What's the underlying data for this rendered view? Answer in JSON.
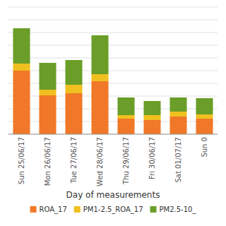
{
  "chart_data": {
    "type": "bar",
    "stacked": true,
    "categories": [
      "Sun 25/06/17",
      "Mon 26/06/17",
      "Tue 27/06/17",
      "Wed 28/06/17",
      "Thu 29/06/17",
      "Fri 30/06/17",
      "Sat 01/07/17",
      "Sun 0"
    ],
    "series": [
      {
        "name": "ROA_17",
        "color": "#f07828",
        "values": [
          9.0,
          5.5,
          5.8,
          7.5,
          2.2,
          2.0,
          2.5,
          2.2
        ]
      },
      {
        "name": "PM1-2.5_ROA_17",
        "color": "#f0c020",
        "values": [
          1.0,
          0.8,
          1.2,
          1.0,
          0.5,
          0.7,
          0.7,
          0.6
        ]
      },
      {
        "name": "PM2.5-10_",
        "color": "#6a9e28",
        "values": [
          5.0,
          3.8,
          3.5,
          5.5,
          2.5,
          2.0,
          2.0,
          2.3
        ]
      }
    ],
    "x_label": "Day of measurements",
    "ylim": [
      0,
      18
    ],
    "yticks": [
      0,
      1.8,
      3.6,
      5.4,
      7.2,
      9,
      10.8,
      12.6,
      14.4,
      16.2,
      18
    ],
    "grid": true,
    "legend": "bottom",
    "tick_labels": "x"
  }
}
